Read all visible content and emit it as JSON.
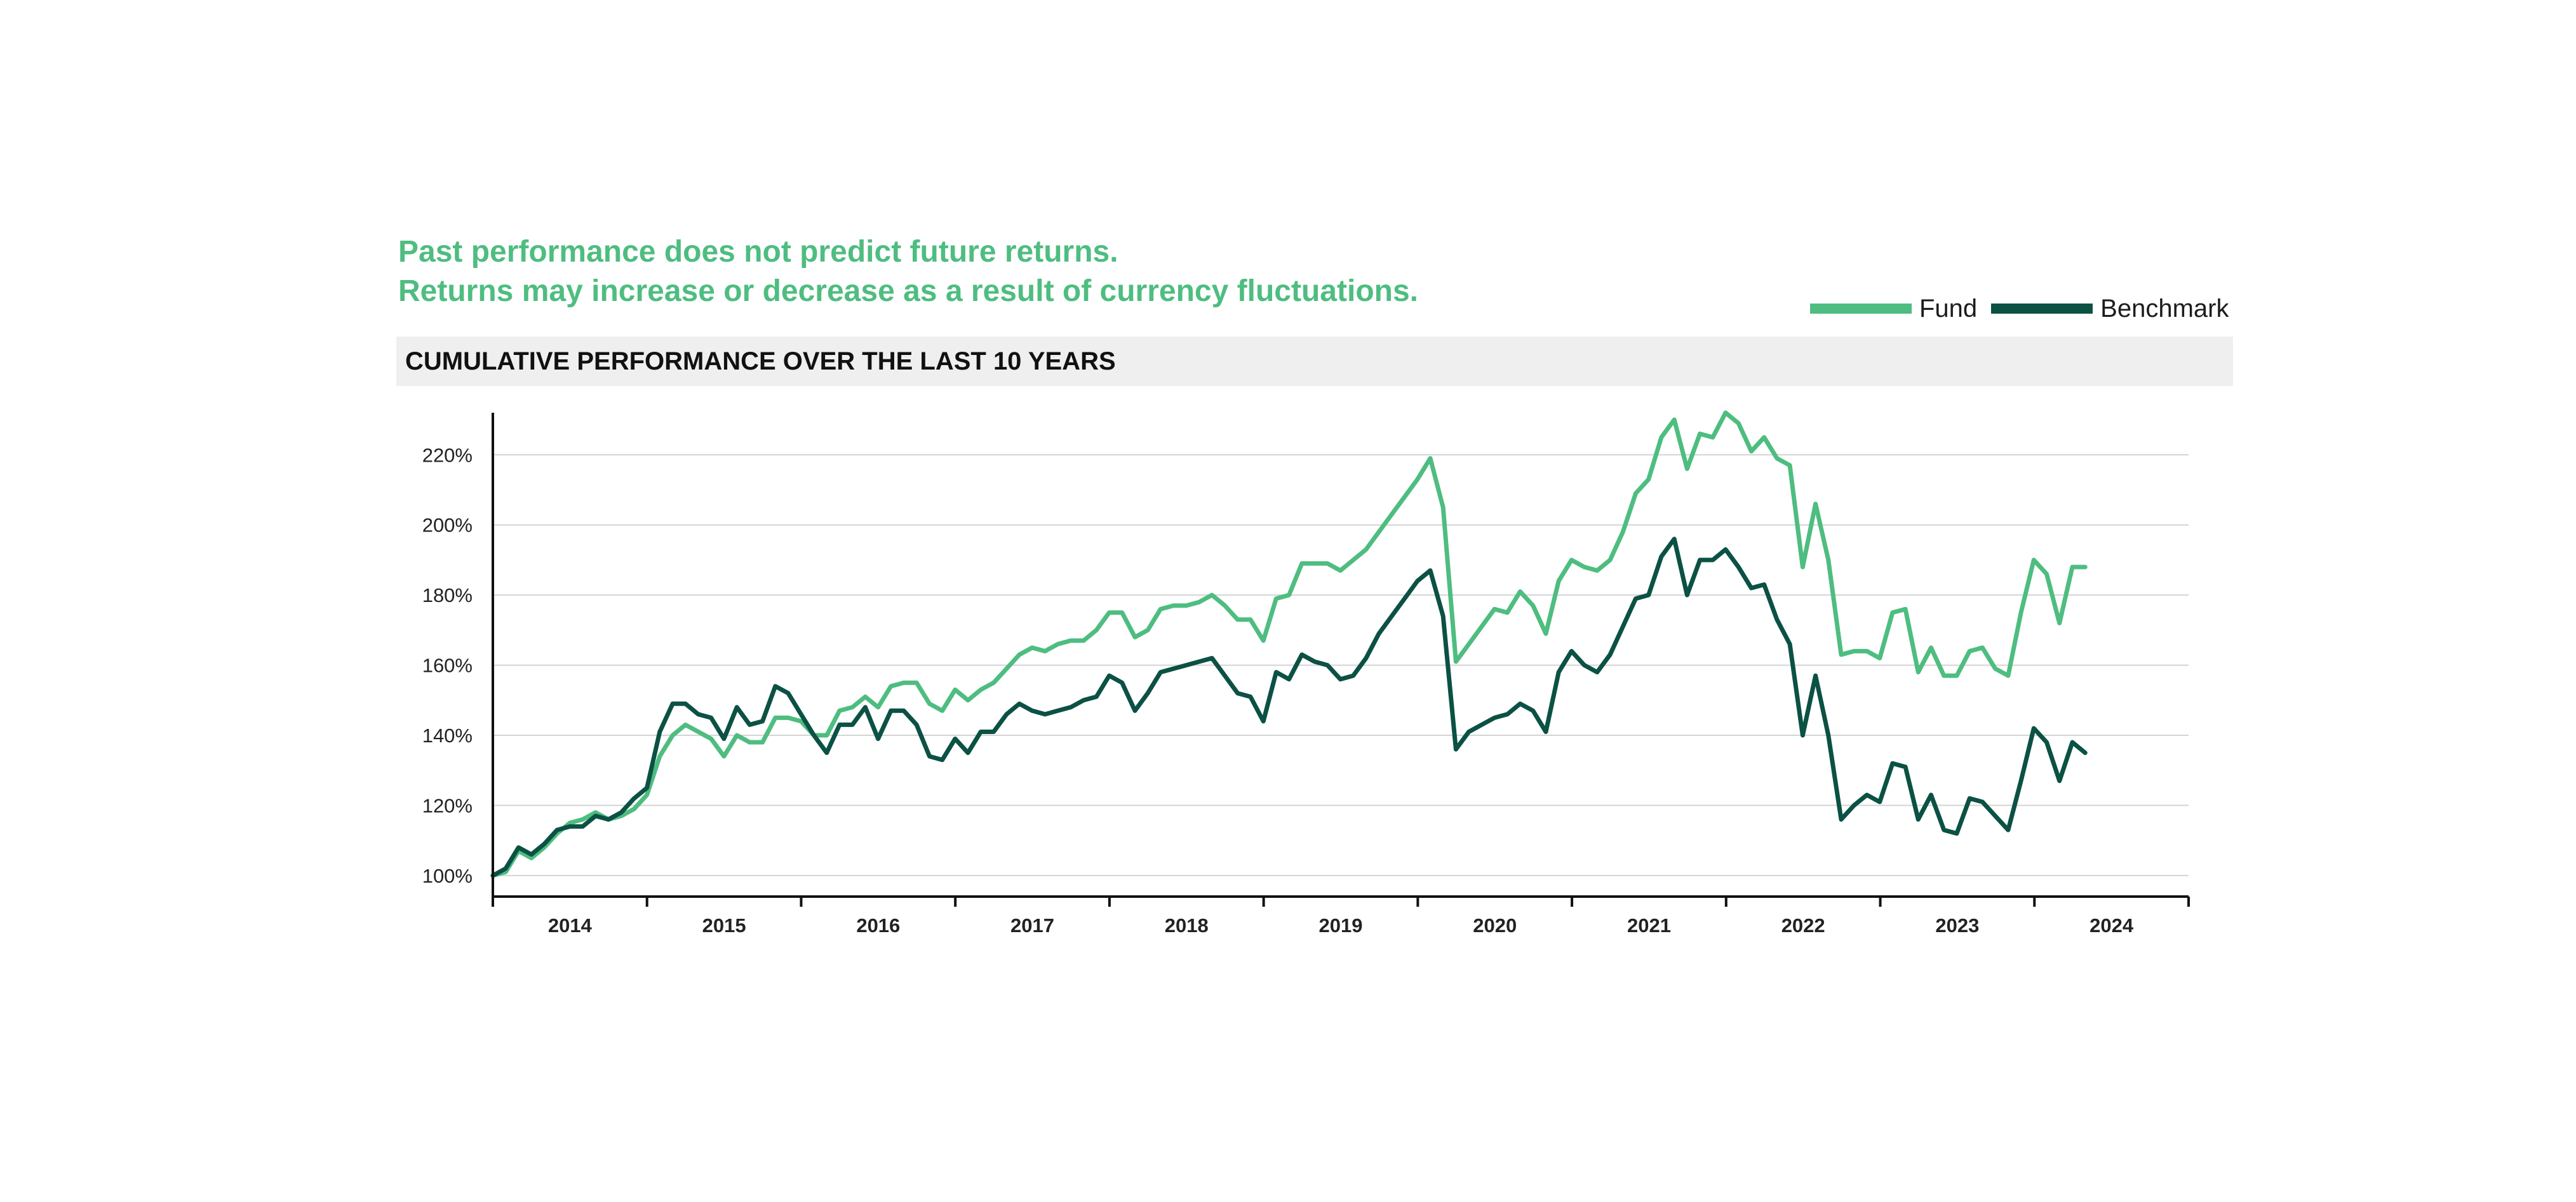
{
  "disclaimer": {
    "line1": "Past performance does not predict future returns.",
    "line2": "Returns may increase or decrease as a result of currency fluctuations."
  },
  "colors": {
    "fund": "#4ebd80",
    "benchmark": "#0b5144",
    "grid": "#d4d4d4",
    "axis": "#111111",
    "title_bg": "#efefef"
  },
  "chart_data": {
    "type": "line",
    "title": "CUMULATIVE PERFORMANCE OVER THE LAST 10 YEARS",
    "xlabel": "",
    "ylabel": "",
    "grid": true,
    "legend_position": "top-right",
    "ylim": [
      94,
      232
    ],
    "xlim": [
      2013.5,
      2024.5
    ],
    "yticks": [
      100,
      120,
      140,
      160,
      180,
      200,
      220
    ],
    "ytick_labels": [
      "100%",
      "120%",
      "140%",
      "160%",
      "180%",
      "200%",
      "220%"
    ],
    "xticks": [
      "2014",
      "2015",
      "2016",
      "2017",
      "2018",
      "2019",
      "2020",
      "2021",
      "2022",
      "2023",
      "2024"
    ],
    "x_start": 2013.5,
    "x_step": 0.0833,
    "series": [
      {
        "name": "Fund",
        "color": "#4ebd80",
        "values": [
          100,
          101,
          107,
          105,
          108,
          112,
          115,
          116,
          118,
          116,
          117,
          119,
          123,
          134,
          140,
          143,
          141,
          139,
          134,
          140,
          138,
          138,
          145,
          145,
          144,
          140,
          140,
          147,
          148,
          151,
          148,
          154,
          155,
          155,
          149,
          147,
          153,
          150,
          153,
          155,
          159,
          163,
          165,
          164,
          166,
          167,
          167,
          170,
          175,
          175,
          168,
          170,
          176,
          177,
          177,
          178,
          180,
          177,
          173,
          173,
          167,
          179,
          180,
          189,
          189,
          189,
          187,
          190,
          193,
          198,
          203,
          208,
          213,
          219,
          205,
          161,
          166,
          171,
          176,
          175,
          181,
          177,
          169,
          184,
          190,
          188,
          187,
          190,
          198,
          209,
          213,
          225,
          230,
          216,
          226,
          225,
          232,
          229,
          221,
          225,
          219,
          217,
          188,
          206,
          190,
          163,
          164,
          164,
          162,
          175,
          176,
          158,
          165,
          157,
          157,
          164,
          165,
          159,
          157,
          175,
          190,
          186,
          172,
          188,
          188
        ]
      },
      {
        "name": "Benchmark",
        "color": "#0b5144",
        "values": [
          100,
          102,
          108,
          106,
          109,
          113,
          114,
          114,
          117,
          116,
          118,
          122,
          125,
          141,
          149,
          149,
          146,
          145,
          139,
          148,
          143,
          144,
          154,
          152,
          146,
          140,
          135,
          143,
          143,
          148,
          139,
          147,
          147,
          143,
          134,
          133,
          139,
          135,
          141,
          141,
          146,
          149,
          147,
          146,
          147,
          148,
          150,
          151,
          157,
          155,
          147,
          152,
          158,
          159,
          160,
          161,
          162,
          157,
          152,
          151,
          144,
          158,
          156,
          163,
          161,
          160,
          156,
          157,
          162,
          169,
          174,
          179,
          184,
          187,
          174,
          136,
          141,
          143,
          145,
          146,
          149,
          147,
          141,
          158,
          164,
          160,
          158,
          163,
          171,
          179,
          180,
          191,
          196,
          180,
          190,
          190,
          193,
          188,
          182,
          183,
          173,
          166,
          140,
          157,
          140,
          116,
          120,
          123,
          121,
          132,
          131,
          116,
          123,
          113,
          112,
          122,
          121,
          117,
          113,
          127,
          142,
          138,
          127,
          138,
          135
        ]
      }
    ]
  }
}
